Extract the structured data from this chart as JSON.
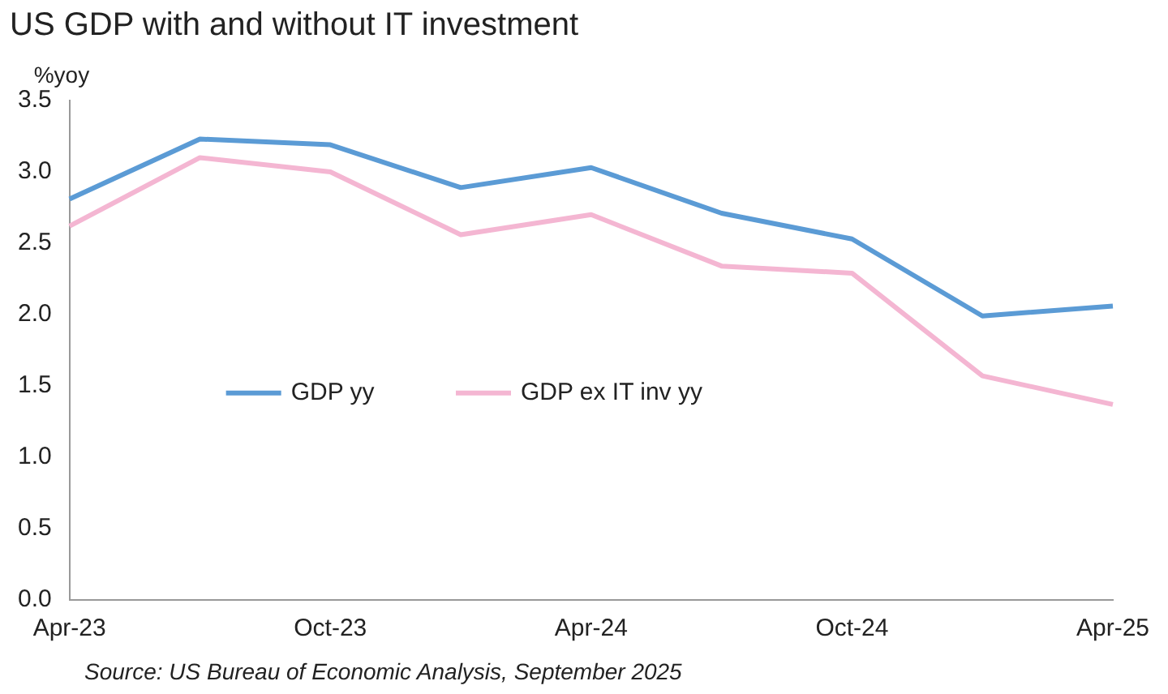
{
  "chart_data": {
    "type": "line",
    "title": "US GDP with and without IT investment",
    "ylabel": "%yoy",
    "categories": [
      "Apr-23",
      null,
      "Oct-23",
      null,
      "Apr-24",
      null,
      "Oct-24",
      null,
      "Apr-25"
    ],
    "series": [
      {
        "name": "GDP yy",
        "color": "#5b9bd5",
        "values": [
          2.81,
          3.23,
          3.19,
          2.89,
          3.03,
          2.71,
          2.53,
          1.99,
          2.06
        ]
      },
      {
        "name": "GDP ex IT inv yy",
        "color": "#f4b6d2",
        "values": [
          2.62,
          3.1,
          3.0,
          2.56,
          2.7,
          2.34,
          2.29,
          1.57,
          1.37
        ]
      }
    ],
    "ylim": [
      0,
      3.5
    ],
    "yticks": [
      {
        "value": 0,
        "label": "0.0"
      },
      0.5,
      {
        "value": 1,
        "label": "1.0"
      },
      1.5,
      {
        "value": 2,
        "label": "2.0"
      },
      2.5,
      {
        "value": 3,
        "label": "3.0"
      },
      3.5
    ],
    "grid": false,
    "legend": "center",
    "marker": "none",
    "line_style": "solid",
    "annotations": [
      "Source: US Bureau of Economic Analysis, September 2025"
    ]
  }
}
